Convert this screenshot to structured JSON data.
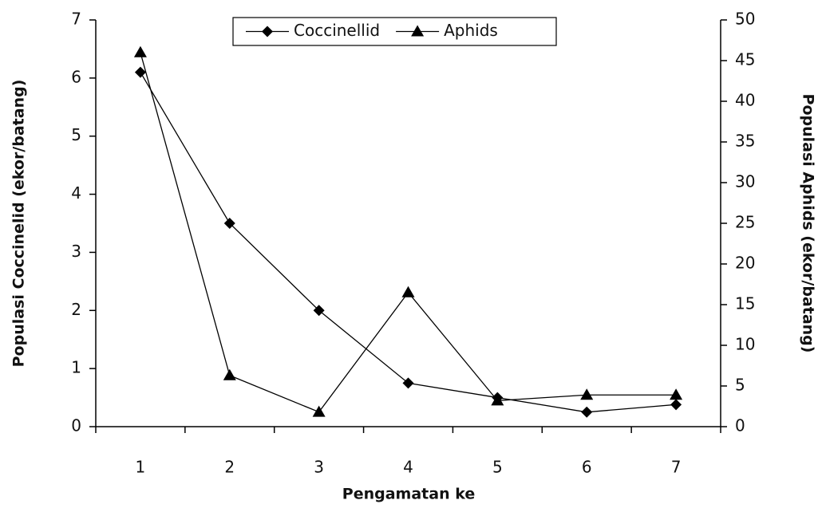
{
  "chart_data": {
    "type": "line",
    "x_label": "Pengamatan ke",
    "y_label": "Populasi Coccinelid (ekor/batang)",
    "y2_label": "Populasi Aphids (ekor/batang)",
    "categories": [
      "1",
      "2",
      "3",
      "4",
      "5",
      "6",
      "7"
    ],
    "series": [
      {
        "name": "Coccinellid",
        "color": "#000000",
        "marker": "diamond",
        "values": [
          6.1,
          3.5,
          2.0,
          0.75,
          0.5,
          0.25,
          0.38
        ]
      },
      {
        "name": "Aphids",
        "color": "#000000",
        "marker": "triangle",
        "axis": "y2",
        "values": [
          46,
          6.3,
          1.8,
          16.5,
          3.2,
          3.9,
          3.9
        ]
      }
    ],
    "ylim": [
      0,
      7
    ],
    "yticks": [
      0,
      1,
      2,
      3,
      4,
      5,
      6,
      7
    ],
    "y2lim": [
      0,
      50
    ],
    "y2ticks": [
      0,
      5,
      10,
      15,
      20,
      25,
      30,
      35,
      40,
      45,
      50
    ],
    "legend": "top"
  }
}
